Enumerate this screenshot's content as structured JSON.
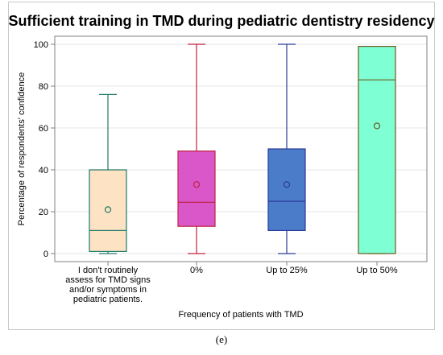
{
  "chart_data": {
    "type": "box",
    "title": "Sufficient training in TMD during pediatric dentistry residency",
    "xlabel": "Frequency of patients with TMD",
    "ylabel": "Percentage of respondents' confidence",
    "ylim": [
      0,
      100
    ],
    "yticks": [
      "0",
      "20",
      "40",
      "60",
      "80",
      "100"
    ],
    "grid": "horizontal",
    "categories": [
      [
        "I don't routinely",
        "assess for TMD signs",
        "and/or symptoms in",
        "pediatric patients."
      ],
      [
        "0%"
      ],
      [
        "Up to 25%"
      ],
      [
        "Up to 50%"
      ]
    ],
    "boxes": [
      {
        "min": 0,
        "q1": 1,
        "median": 11,
        "q3": 40,
        "max": 76,
        "mean": 21,
        "fill": "#fde3c4",
        "stroke": "#1f7a6a"
      },
      {
        "min": 0,
        "q1": 13,
        "median": 24.5,
        "q3": 49,
        "max": 100,
        "mean": 33,
        "fill": "#d957c8",
        "stroke": "#c0223f"
      },
      {
        "min": 0,
        "q1": 11,
        "median": 25,
        "q3": 50,
        "max": 100,
        "mean": 33,
        "fill": "#4a7cc9",
        "stroke": "#2a3a9a"
      },
      {
        "min": 0,
        "q1": 0,
        "median": 83,
        "q3": 99,
        "max": 99,
        "mean": 61,
        "fill": "#7fffd4",
        "stroke": "#6b5a1f"
      }
    ]
  },
  "caption": "(e)"
}
